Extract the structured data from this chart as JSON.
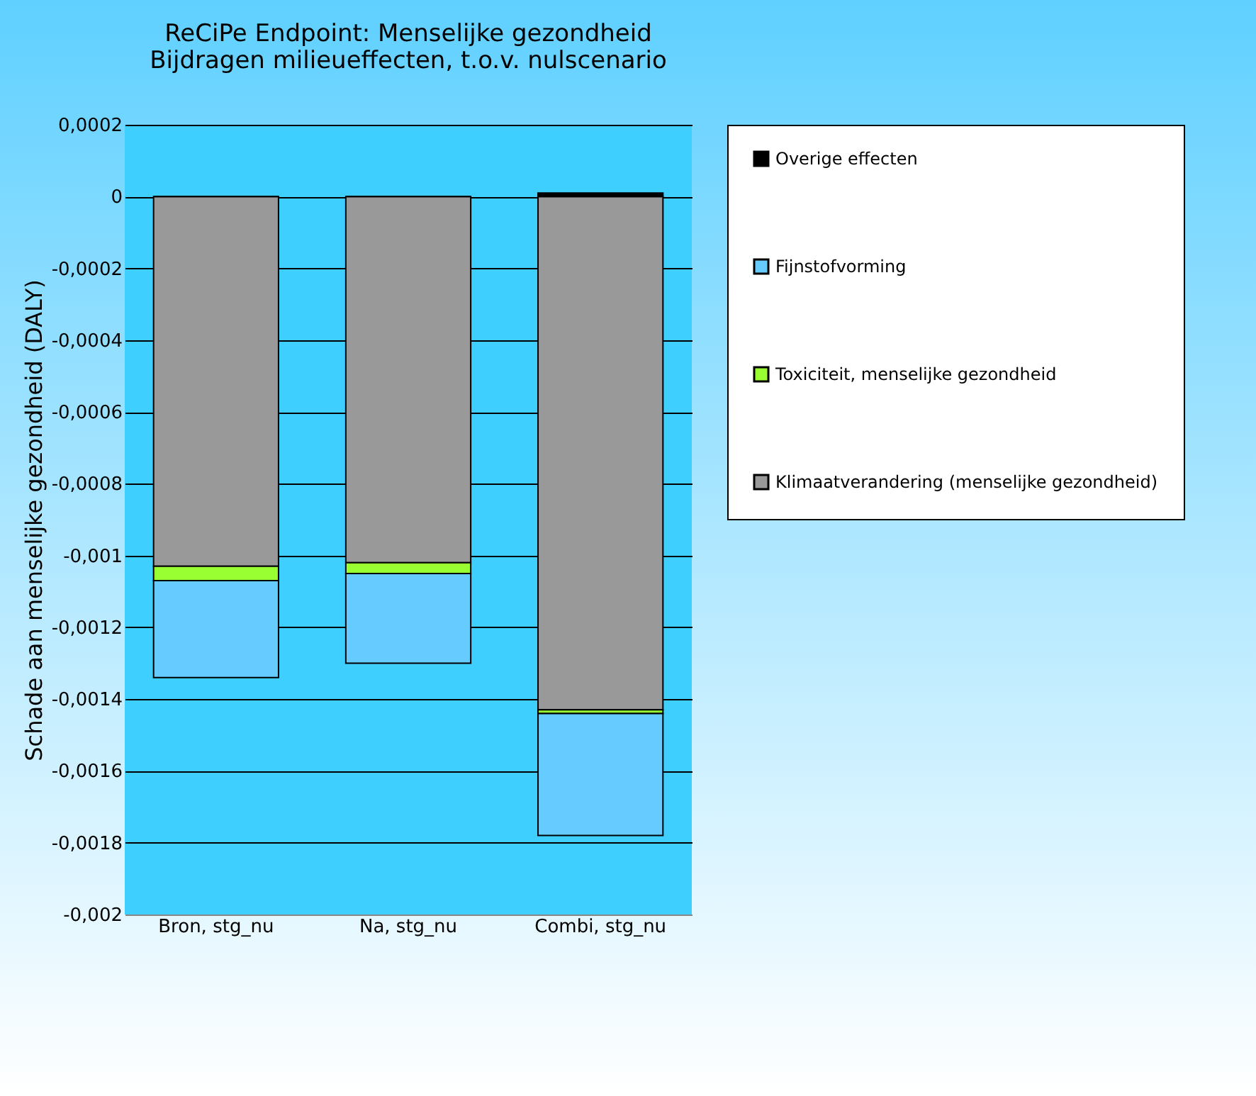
{
  "chart_data": {
    "type": "bar",
    "title": [
      "ReCiPe Endpoint: Menselijke gezondheid",
      "Bijdragen milieueffecten,  t.o.v. nulscenario"
    ],
    "ylabel": "Schade aan menselijke gezondheid  (DALY)",
    "categories": [
      "Bron, stg_nu",
      "Na, stg_nu",
      "Combi, stg_nu"
    ],
    "stacked": true,
    "series": [
      {
        "name": "Klimaatverandering (menselijke gezondheid)",
        "color": "#999999",
        "values": [
          -0.00103,
          -0.00102,
          -0.00143
        ]
      },
      {
        "name": "Toxiciteit, menselijke gezondheid",
        "color": "#99ff33",
        "values": [
          -4e-05,
          -3e-05,
          -1e-05
        ]
      },
      {
        "name": "Fijnstofvorming",
        "color": "#66ccff",
        "values": [
          -0.00027,
          -0.00025,
          -0.00034
        ]
      },
      {
        "name": "Overige effecten",
        "color": "#000000",
        "values": [
          0,
          0,
          1e-05
        ]
      }
    ],
    "ylim": [
      -0.002,
      0.0002
    ],
    "yticks": [
      {
        "value": 0.0002,
        "label": "0,0002"
      },
      {
        "value": 0,
        "label": "0"
      },
      {
        "value": -0.0002,
        "label": "-0,0002"
      },
      {
        "value": -0.0004,
        "label": "-0,0004"
      },
      {
        "value": -0.0006,
        "label": "-0,0006"
      },
      {
        "value": -0.0008,
        "label": "-0,0008"
      },
      {
        "value": -0.001,
        "label": "-0,001"
      },
      {
        "value": -0.0012,
        "label": "-0,0012"
      },
      {
        "value": -0.0014,
        "label": "-0,0014"
      },
      {
        "value": -0.0016,
        "label": "-0,0016"
      },
      {
        "value": -0.0018,
        "label": "-0,0018"
      },
      {
        "value": -0.002,
        "label": "-0,002"
      }
    ],
    "grid": "y",
    "legend": "right"
  }
}
